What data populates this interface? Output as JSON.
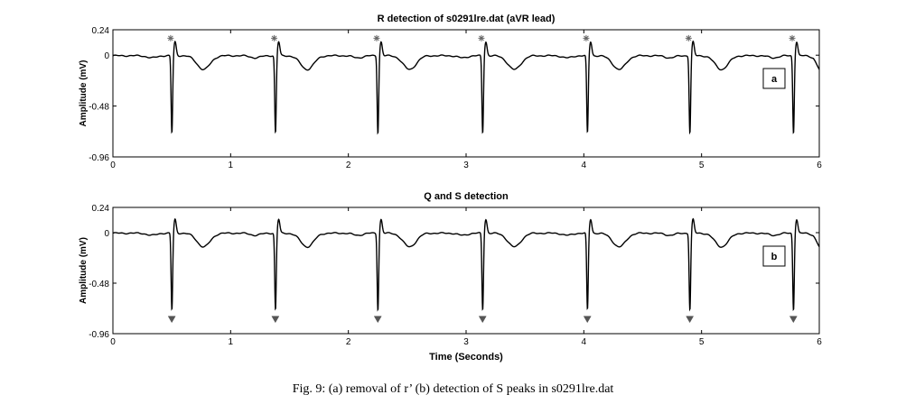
{
  "caption": "Fig. 9: (a) removal of r’ (b) detection of S peaks in s0291lre.dat",
  "chart_data": [
    {
      "type": "line",
      "title": "R detection of s0291lre.dat (aVR lead)",
      "xlabel": "",
      "ylabel": "Amplitude (mV)",
      "xlim": [
        0,
        6
      ],
      "ylim": [
        -0.96,
        0.24
      ],
      "xticks": [
        "0",
        "1",
        "2",
        "3",
        "4",
        "5",
        "6"
      ],
      "yticks": [
        "0.24",
        "0",
        "-0.48",
        "-0.96"
      ],
      "ytick_values": [
        0.24,
        0,
        -0.48,
        -0.96
      ],
      "grid": false,
      "panel_label": "a",
      "beat_times": [
        0.5,
        1.38,
        2.25,
        3.14,
        4.03,
        4.9,
        5.78
      ],
      "markers": {
        "kind": "R peaks",
        "shape": "asterisk",
        "x": [
          0.49,
          1.37,
          2.24,
          3.13,
          4.02,
          4.89,
          5.77
        ],
        "y": [
          0.16,
          0.16,
          0.16,
          0.16,
          0.16,
          0.16,
          0.16
        ]
      }
    },
    {
      "type": "line",
      "title": "Q and S detection",
      "xlabel": "Time (Seconds)",
      "ylabel": "Amplitude (mV)",
      "xlim": [
        0,
        6
      ],
      "ylim": [
        -0.96,
        0.24
      ],
      "xticks": [
        "0",
        "1",
        "2",
        "3",
        "4",
        "5",
        "6"
      ],
      "yticks": [
        "0.24",
        "0",
        "-0.48",
        "-0.96"
      ],
      "ytick_values": [
        0.24,
        0,
        -0.48,
        -0.96
      ],
      "grid": false,
      "panel_label": "b",
      "beat_times": [
        0.5,
        1.38,
        2.25,
        3.14,
        4.03,
        4.9,
        5.78
      ],
      "markers": {
        "kind": "S peaks",
        "shape": "triangle-down",
        "x": [
          0.5,
          1.38,
          2.25,
          3.14,
          4.03,
          4.9,
          5.78
        ],
        "y": [
          -0.82,
          -0.82,
          -0.82,
          -0.82,
          -0.82,
          -0.82,
          -0.82
        ]
      }
    }
  ]
}
